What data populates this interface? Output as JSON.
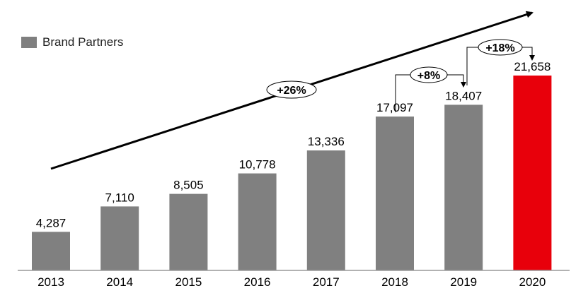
{
  "chart_data": {
    "type": "bar",
    "categories": [
      "2013",
      "2014",
      "2015",
      "2016",
      "2017",
      "2018",
      "2019",
      "2020"
    ],
    "series": [
      {
        "name": "Brand Partners",
        "values": [
          4287,
          7110,
          8505,
          10778,
          13336,
          17097,
          18407,
          21658
        ],
        "value_labels": [
          "4,287",
          "7,110",
          "8,505",
          "10,778",
          "13,336",
          "17,097",
          "18,407",
          "21,658"
        ]
      }
    ],
    "ylim": [
      0,
      23000
    ],
    "grid": false,
    "legend": "top-left",
    "colors": {
      "bar": "#808080",
      "highlight": "#e8000b",
      "highlight_category": "2020"
    },
    "annotations": {
      "cagr": "+26%",
      "growth_2018_2019": "+8%",
      "growth_2019_2020": "+18%"
    }
  }
}
